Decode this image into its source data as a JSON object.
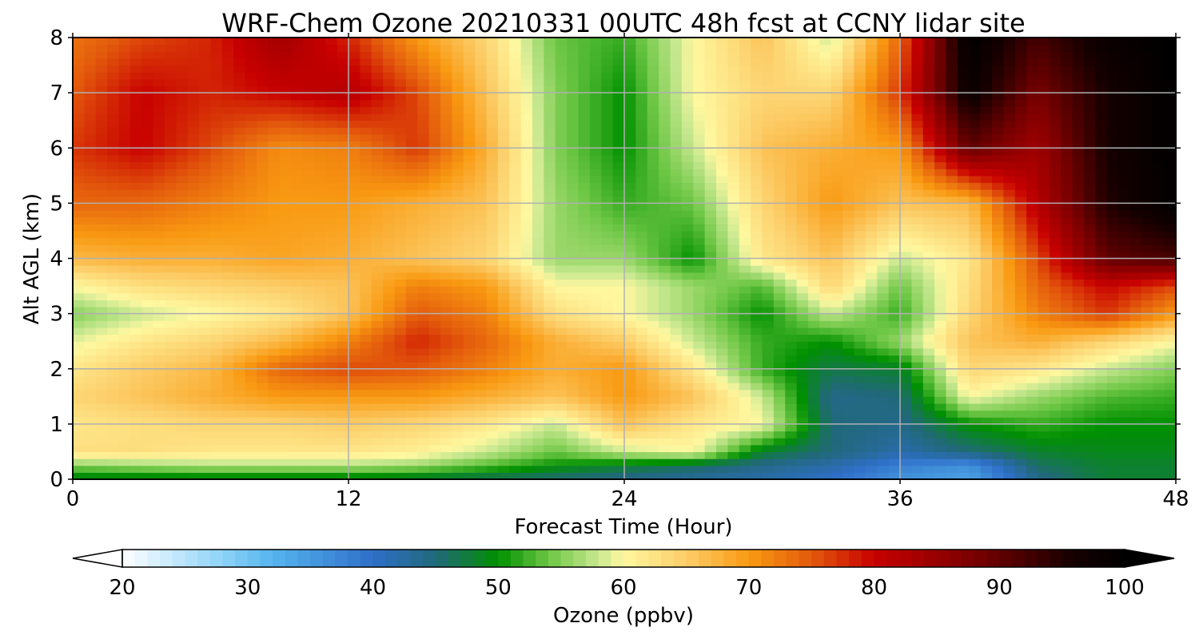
{
  "chart_data": {
    "type": "heatmap",
    "title": "WRF-Chem Ozone  20210331 00UTC 48h fcst at CCNY lidar site",
    "xlabel": "Forecast Time (Hour)",
    "ylabel": "Alt AGL (km)",
    "xlim": [
      0,
      48
    ],
    "ylim": [
      0,
      8
    ],
    "xticks": [
      0,
      12,
      24,
      36,
      48
    ],
    "xtick_labels": [
      "0",
      "12",
      "24",
      "36",
      "48"
    ],
    "yticks": [
      0,
      1,
      2,
      3,
      4,
      5,
      6,
      7,
      8
    ],
    "ytick_labels": [
      "0",
      "1",
      "2",
      "3",
      "4",
      "5",
      "6",
      "7",
      "8"
    ],
    "grid": true,
    "hours": [
      0,
      3,
      6,
      9,
      12,
      15,
      18,
      21,
      24,
      27,
      30,
      33,
      36,
      39,
      42,
      45,
      48
    ],
    "altitudes_km": [
      0,
      0.25,
      0.5,
      1,
      1.5,
      2,
      2.5,
      3,
      3.5,
      4,
      5,
      6,
      7,
      8
    ],
    "ozone_ppbv": [
      [
        48,
        48,
        48,
        48,
        48,
        47,
        46,
        45,
        44,
        43,
        42,
        40,
        36,
        34,
        44,
        48,
        48
      ],
      [
        55,
        56,
        57,
        57,
        57,
        56,
        53,
        50,
        48,
        46,
        44,
        42,
        38,
        36,
        46,
        48,
        48
      ],
      [
        63,
        63,
        62,
        62,
        62,
        61,
        58,
        54,
        58,
        60,
        48,
        45,
        42,
        45,
        48,
        49,
        49
      ],
      [
        62,
        63,
        64,
        64,
        65,
        64,
        62,
        58,
        66,
        62,
        60,
        45,
        44,
        50,
        52,
        50,
        50
      ],
      [
        64,
        66,
        68,
        70,
        70,
        70,
        68,
        66,
        70,
        66,
        58,
        44,
        45,
        60,
        56,
        53,
        52
      ],
      [
        62,
        65,
        67,
        74,
        76,
        75,
        72,
        68,
        70,
        62,
        52,
        47,
        48,
        64,
        62,
        58,
        55
      ],
      [
        59,
        62,
        64,
        67,
        72,
        78,
        74,
        68,
        65,
        58,
        52,
        50,
        56,
        66,
        68,
        64,
        60
      ],
      [
        55,
        58,
        60,
        62,
        66,
        75,
        72,
        63,
        60,
        56,
        50,
        58,
        52,
        64,
        72,
        77,
        70
      ],
      [
        60,
        63,
        64,
        65,
        66,
        72,
        70,
        60,
        60,
        56,
        53,
        64,
        54,
        63,
        74,
        80,
        76
      ],
      [
        67,
        68,
        68,
        69,
        68,
        66,
        64,
        56,
        56,
        50,
        62,
        66,
        58,
        62,
        76,
        90,
        92
      ],
      [
        74,
        74,
        72,
        70,
        70,
        68,
        66,
        56,
        52,
        54,
        64,
        70,
        66,
        67,
        82,
        95,
        100
      ],
      [
        77,
        80,
        76,
        71,
        72,
        77,
        68,
        55,
        50,
        58,
        66,
        68,
        70,
        90,
        84,
        96,
        100
      ],
      [
        75,
        80,
        78,
        80,
        82,
        76,
        66,
        55,
        50,
        60,
        64,
        64,
        77,
        98,
        88,
        96,
        100
      ],
      [
        73,
        76,
        78,
        84,
        78,
        70,
        64,
        54,
        52,
        60,
        66,
        58,
        74,
        100,
        92,
        98,
        100
      ]
    ],
    "colorbar": {
      "label": "Ozone  (ppbv)",
      "min": 20,
      "max": 100,
      "extend": "both",
      "ticks": [
        20,
        30,
        40,
        50,
        60,
        70,
        80,
        90,
        100
      ],
      "tick_labels": [
        "20",
        "30",
        "40",
        "50",
        "60",
        "70",
        "80",
        "90",
        "100"
      ],
      "color_stops": [
        {
          "value": 20,
          "color": "#ffffff"
        },
        {
          "value": 28,
          "color": "#8dd3f7"
        },
        {
          "value": 32,
          "color": "#55b4ee"
        },
        {
          "value": 40,
          "color": "#2f6fc8"
        },
        {
          "value": 45,
          "color": "#21687a"
        },
        {
          "value": 50,
          "color": "#009000"
        },
        {
          "value": 54,
          "color": "#6cc644"
        },
        {
          "value": 58,
          "color": "#c8e890"
        },
        {
          "value": 60,
          "color": "#fff8a0"
        },
        {
          "value": 65,
          "color": "#fccd68"
        },
        {
          "value": 70,
          "color": "#f99a12"
        },
        {
          "value": 75,
          "color": "#e35a0c"
        },
        {
          "value": 80,
          "color": "#c80000"
        },
        {
          "value": 88,
          "color": "#7a0000"
        },
        {
          "value": 96,
          "color": "#150000"
        },
        {
          "value": 100,
          "color": "#000000"
        }
      ]
    }
  }
}
